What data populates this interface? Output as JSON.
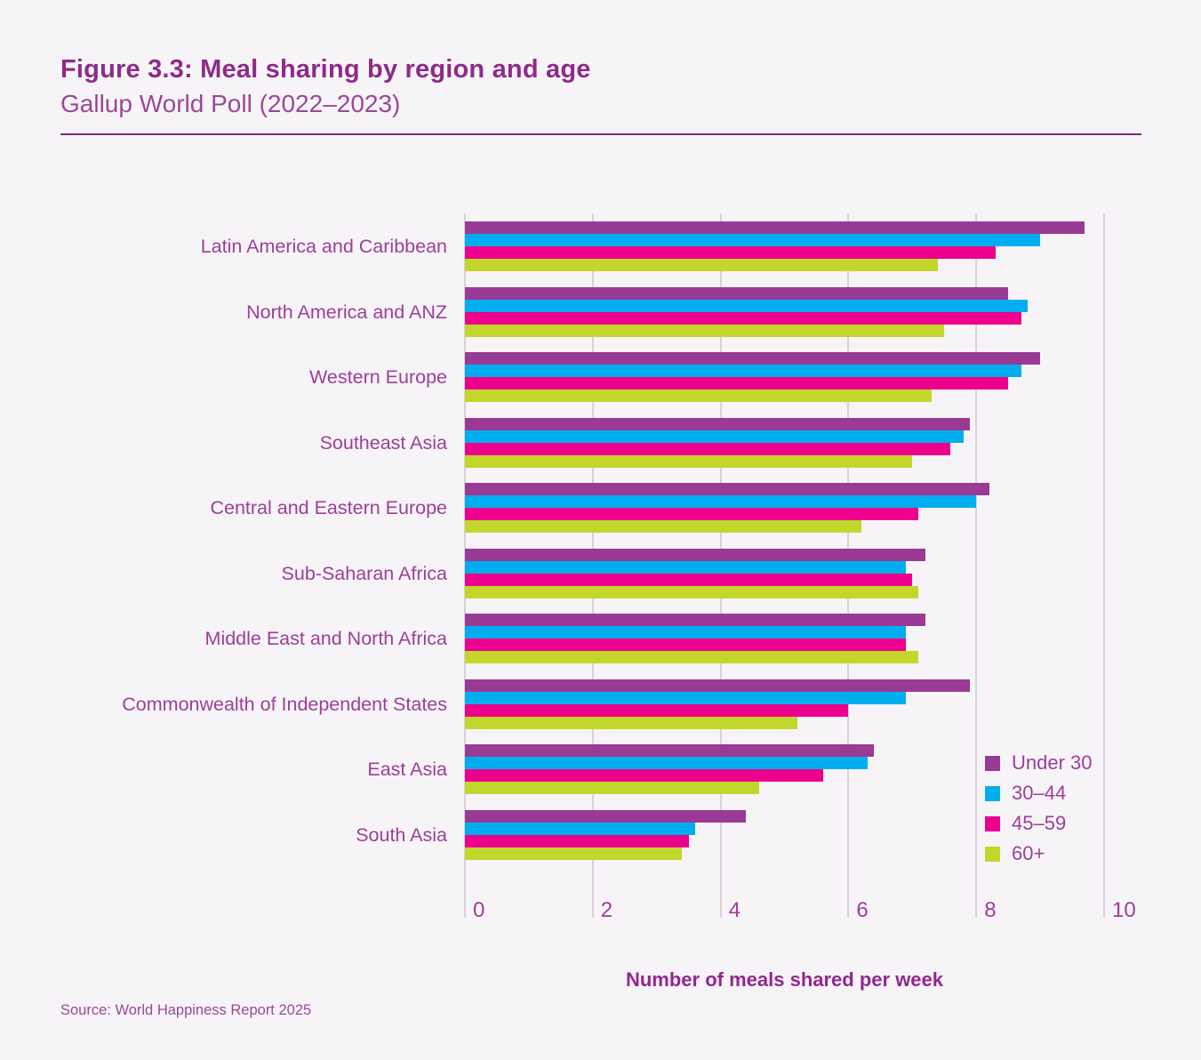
{
  "source": "Source: World Happiness Report 2025",
  "colors": {
    "title_color": "#8e2b8a",
    "subtitle_color": "#9a4897",
    "text_color": "#9c3f98",
    "accent_color": "#92278f",
    "rule_color": "#7c2d7a",
    "grid_color": "#dbcfdd",
    "background": "#f7f4f7"
  },
  "chart_data": {
    "type": "bar",
    "orientation": "horizontal",
    "title": "Figure 3.3: Meal sharing by region and age",
    "subtitle": "Gallup World Poll (2022–2023)",
    "xlabel": "Number of meals shared per week",
    "xlim": [
      0,
      10
    ],
    "x_ticks": [
      0,
      2,
      4,
      6,
      8,
      10
    ],
    "grid": true,
    "legend_position": "inside-bottom-right",
    "categories": [
      "Latin America and Caribbean",
      "North America and ANZ",
      "Western Europe",
      "Southeast Asia",
      "Central and Eastern Europe",
      "Sub-Saharan Africa",
      "Middle East and North Africa",
      "Commonwealth of Independent States",
      "East Asia",
      "South Asia"
    ],
    "series": [
      {
        "name": "Under 30",
        "color": "#993a95",
        "values": [
          9.7,
          8.5,
          9.0,
          7.9,
          8.2,
          7.2,
          7.2,
          7.9,
          6.4,
          4.4
        ]
      },
      {
        "name": "30–44",
        "color": "#00aeef",
        "values": [
          9.0,
          8.8,
          8.7,
          7.8,
          8.0,
          6.9,
          6.9,
          6.9,
          6.3,
          3.6
        ]
      },
      {
        "name": "45–59",
        "color": "#ec008c",
        "values": [
          8.3,
          8.7,
          8.5,
          7.6,
          7.1,
          7.0,
          6.9,
          6.0,
          5.6,
          3.5
        ]
      },
      {
        "name": "60+",
        "color": "#c3d62b",
        "values": [
          7.4,
          7.5,
          7.3,
          7.0,
          6.2,
          7.1,
          7.1,
          5.2,
          4.6,
          3.4
        ]
      }
    ]
  }
}
